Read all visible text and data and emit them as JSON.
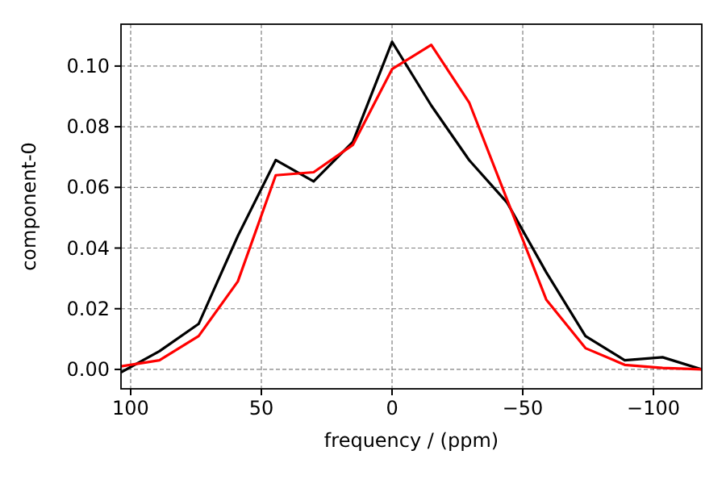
{
  "chart_data": {
    "type": "line",
    "xlabel": "frequency / (ppm)",
    "ylabel": "component-0",
    "x": [
      103.7,
      89,
      74,
      59,
      44.5,
      30,
      15,
      0,
      -15,
      -29.5,
      -44,
      -59,
      -74,
      -89,
      -103.5,
      -118.5
    ],
    "series": [
      {
        "color": "#000000",
        "values": [
          -0.001,
          0.006,
          0.015,
          0.044,
          0.069,
          0.062,
          0.075,
          0.108,
          0.087,
          0.069,
          0.055,
          0.032,
          0.011,
          0.003,
          0.004,
          0.0
        ]
      },
      {
        "color": "#ff0000",
        "values": [
          0.001,
          0.003,
          0.011,
          0.029,
          0.064,
          0.065,
          0.074,
          0.099,
          0.107,
          0.088,
          0.056,
          0.023,
          0.007,
          0.0015,
          0.0005,
          0.0
        ]
      }
    ],
    "xlim": [
      103.7,
      -118.5
    ],
    "ylim": [
      -0.0064,
      0.1138
    ],
    "xticks": [
      100,
      50,
      0,
      {
        "value": -50,
        "label": "−50"
      },
      {
        "value": -100,
        "label": "−100"
      }
    ],
    "yticks": [
      {
        "value": 0,
        "label": "0.00"
      },
      {
        "value": 0.02,
        "label": "0.02"
      },
      {
        "value": 0.04,
        "label": "0.04"
      },
      {
        "value": 0.06,
        "label": "0.06"
      },
      {
        "value": 0.08,
        "label": "0.08"
      },
      {
        "value": 0.1,
        "label": "0.10"
      }
    ],
    "grid": true,
    "line_style": "solid"
  }
}
